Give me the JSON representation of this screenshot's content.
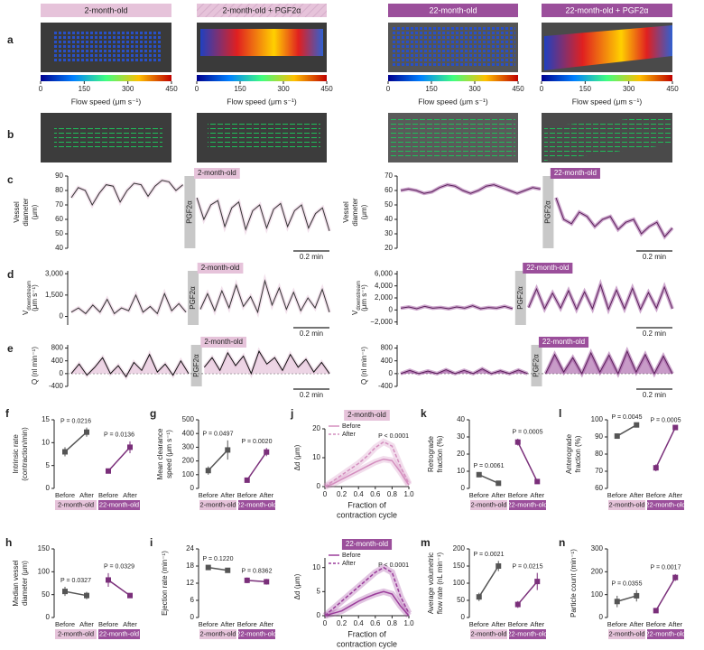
{
  "image_rows": {
    "panel_a": "a",
    "panel_b": "b",
    "headers": [
      "2-month-old",
      "2-month-old + PGF2α",
      "22-month-old",
      "22-month-old + PGF2α"
    ],
    "header_colors": [
      "#e6c3da",
      "#e6c3da",
      "#9b4f9b",
      "#9b4f9b"
    ],
    "colorbar": {
      "lim": [
        0,
        450
      ],
      "ticks": [
        0,
        150,
        300,
        450
      ],
      "label": "Flow speed (μm s⁻¹)"
    }
  },
  "chart_data": [
    {
      "type": "timeseries",
      "panel": "c",
      "y_label": [
        "Vessel",
        "diameter",
        "(μm)"
      ],
      "ylim": [
        40,
        90
      ],
      "yticks": [
        40,
        50,
        60,
        70,
        80,
        90
      ],
      "tag": "2-month-old",
      "tag_color": "#e6c3da",
      "gap_label": "PGF2α",
      "scale_label": "0.2 min",
      "color": "#333333",
      "values": [
        75,
        82,
        80,
        70,
        78,
        84,
        83,
        72,
        80,
        85,
        84,
        76,
        83,
        87,
        86,
        80,
        84,
        null,
        75,
        60,
        70,
        73,
        55,
        68,
        72,
        53,
        66,
        70,
        54,
        67,
        71,
        55,
        66,
        70,
        54,
        64,
        68,
        52
      ]
    },
    {
      "type": "timeseries",
      "y_label": [
        "Vessel",
        "diameter",
        "(μm)"
      ],
      "ylim": [
        20,
        70
      ],
      "yticks": [
        20,
        30,
        40,
        50,
        60,
        70
      ],
      "tag": "22-month-old",
      "tag_color": "#9b4f9b",
      "gap_label": "PGF2α",
      "scale_label": "0.2 min",
      "color": "#5a1f5a",
      "values": [
        60,
        61,
        60,
        58,
        59,
        62,
        64,
        63,
        60,
        58,
        60,
        63,
        64,
        62,
        60,
        58,
        60,
        62,
        61,
        null,
        55,
        40,
        37,
        45,
        42,
        35,
        40,
        42,
        33,
        38,
        40,
        30,
        35,
        38,
        28,
        34
      ]
    },
    {
      "type": "timeseries",
      "panel": "d",
      "y_label": [
        "V",
        "(μm s⁻¹)"
      ],
      "y_label_sub": "downstream",
      "ylim": [
        -600,
        3200
      ],
      "yticks": [
        0,
        {
          "value": 1500,
          "label": "1,500"
        },
        {
          "value": 3000,
          "label": "3,000"
        }
      ],
      "tag": "2-month-old",
      "tag_color": "#e6c3da",
      "gap_label": "PGF2α",
      "scale_label": "0.2 min",
      "color": "#333333",
      "values": [
        300,
        600,
        200,
        800,
        300,
        1200,
        200,
        600,
        400,
        1500,
        300,
        700,
        200,
        1600,
        400,
        900,
        300,
        null,
        500,
        1600,
        400,
        1800,
        600,
        2200,
        700,
        1400,
        300,
        2500,
        800,
        2000,
        500,
        1700,
        400,
        1300,
        600,
        1900,
        300
      ]
    },
    {
      "type": "timeseries",
      "y_label": [
        "V",
        "(μm s⁻¹)"
      ],
      "y_label_sub": "downstream",
      "ylim": [
        -2500,
        6500
      ],
      "yticks": [
        {
          "value": -2000,
          "label": "−2,000"
        },
        0,
        {
          "value": 2000,
          "label": "2,000"
        },
        {
          "value": 4000,
          "label": "4,000"
        },
        {
          "value": 6000,
          "label": "6,000"
        }
      ],
      "tag": "22-month-old",
      "tag_color": "#9b4f9b",
      "gap_label": "PGF2α",
      "scale_label": "0.2 min",
      "color": "#5a1f5a",
      "values": [
        300,
        500,
        200,
        600,
        300,
        400,
        200,
        500,
        300,
        700,
        200,
        400,
        300,
        600,
        200,
        null,
        400,
        3500,
        200,
        2800,
        300,
        3200,
        100,
        3000,
        200,
        4200,
        100,
        3300,
        200,
        3600,
        100,
        2900,
        300,
        3800,
        200
      ]
    },
    {
      "type": "timeseries",
      "panel": "e",
      "y_label": [
        "Q (nl min⁻¹)"
      ],
      "ylim": [
        -400,
        900
      ],
      "yticks": [
        -400,
        0,
        400,
        800
      ],
      "tag": "2-month-old",
      "tag_color": "#e6c3da",
      "gap_label": "PGF2α",
      "scale_label": "0.2 min",
      "color": "#111111",
      "fill": "#e6c3da",
      "values": [
        0,
        300,
        -50,
        200,
        500,
        0,
        250,
        -100,
        350,
        100,
        600,
        50,
        300,
        -50,
        400,
        0,
        null,
        200,
        500,
        100,
        650,
        250,
        550,
        0,
        700,
        300,
        500,
        100,
        600,
        200,
        450,
        50,
        350,
        0
      ]
    },
    {
      "type": "timeseries",
      "y_label": [
        "Q (nl min⁻¹)"
      ],
      "ylim": [
        -400,
        900
      ],
      "yticks": [
        -400,
        0,
        400,
        800
      ],
      "tag": "22-month-old",
      "tag_color": "#9b4f9b",
      "gap_label": "PGF2α",
      "scale_label": "0.2 min",
      "color": "#5a1f5a",
      "fill": "#b070b0",
      "values": [
        0,
        100,
        0,
        80,
        0,
        120,
        0,
        100,
        0,
        150,
        0,
        90,
        0,
        110,
        0,
        null,
        0,
        600,
        50,
        500,
        0,
        650,
        50,
        580,
        0,
        700,
        50,
        600,
        0,
        550,
        0
      ]
    },
    {
      "type": "paired",
      "panel": "f",
      "y_label": [
        "Intrinsic rate",
        "(contraction/min)"
      ],
      "ylim": [
        0,
        15
      ],
      "yticks": [
        0,
        5,
        10,
        15
      ],
      "conditions": [
        "Before",
        "After"
      ],
      "groups": [
        {
          "name": "2-month-old",
          "color": "#e6c3da",
          "values": [
            8,
            12.3
          ],
          "errors": [
            1,
            1
          ],
          "p": "P = 0.0216"
        },
        {
          "name": "22-month-old",
          "color": "#9b4f9b",
          "values": [
            3.8,
            9
          ],
          "errors": [
            0.5,
            1.3
          ],
          "p": "P = 0.0136"
        }
      ]
    },
    {
      "type": "paired",
      "panel": "g",
      "y_label": [
        "Mean clearance",
        "speed (μm s⁻¹)"
      ],
      "ylim": [
        0,
        500
      ],
      "yticks": [
        0,
        100,
        200,
        300,
        400,
        500
      ],
      "conditions": [
        "Before",
        "After"
      ],
      "groups": [
        {
          "name": "2-month-old",
          "color": "#e6c3da",
          "values": [
            130,
            280
          ],
          "errors": [
            30,
            70
          ],
          "p": "P = 0.0497"
        },
        {
          "name": "22-month-old",
          "color": "#9b4f9b",
          "values": [
            60,
            265
          ],
          "errors": [
            10,
            30
          ],
          "p": "P = 0.0020"
        }
      ]
    },
    {
      "type": "curve",
      "panel": "j",
      "tag": "2-month-old",
      "tag_color": "#e6c3da",
      "y_label": "Δd (μm)",
      "x_label": [
        "Fraction of",
        "contraction cycle"
      ],
      "p": "P < 0.0001",
      "xlim": [
        0,
        1
      ],
      "xticks": [
        0,
        0.2,
        0.4,
        0.6,
        0.8,
        {
          "value": 1,
          "label": "1.0"
        }
      ],
      "ylim": [
        0,
        20
      ],
      "yticks": [
        0,
        10,
        20
      ],
      "x": [
        0,
        0.1,
        0.2,
        0.3,
        0.4,
        0.5,
        0.6,
        0.7,
        0.8,
        0.9,
        1
      ],
      "series": [
        {
          "name": "Before",
          "color": "#d48fbf",
          "dashed": false,
          "values": [
            0,
            1,
            2.5,
            4,
            5.5,
            7,
            8.5,
            9.5,
            9,
            5,
            0.5
          ]
        },
        {
          "name": "After",
          "color": "#d48fbf",
          "dashed": true,
          "values": [
            0,
            2,
            4,
            6,
            8,
            10.5,
            13.5,
            15.5,
            14,
            7,
            1
          ]
        }
      ]
    },
    {
      "type": "paired",
      "panel": "k",
      "y_label": [
        "Retrograde",
        "fraction (%)"
      ],
      "ylim": [
        0,
        40
      ],
      "yticks": [
        0,
        10,
        20,
        30,
        40
      ],
      "conditions": [
        "Before",
        "After"
      ],
      "groups": [
        {
          "name": "2-month-old",
          "color": "#e6c3da",
          "values": [
            8,
            3
          ],
          "errors": [
            1.5,
            1
          ],
          "p": "P = 0.0061"
        },
        {
          "name": "22-month-old",
          "color": "#9b4f9b",
          "values": [
            27,
            4
          ],
          "errors": [
            2,
            0.8
          ],
          "p": "P = 0.0005"
        }
      ]
    },
    {
      "type": "paired",
      "panel": "l",
      "y_label": [
        "Anterograde",
        "fraction (%)"
      ],
      "ylim": [
        60,
        100
      ],
      "yticks": [
        60,
        70,
        80,
        90,
        100
      ],
      "conditions": [
        "Before",
        "After"
      ],
      "groups": [
        {
          "name": "2-month-old",
          "color": "#e6c3da",
          "values": [
            90.5,
            97
          ],
          "errors": [
            1.5,
            0.8
          ],
          "p": "P = 0.0045"
        },
        {
          "name": "22-month-old",
          "color": "#9b4f9b",
          "values": [
            72,
            95.5
          ],
          "errors": [
            2,
            0.6
          ],
          "p": "P = 0.0005"
        }
      ]
    },
    {
      "type": "paired",
      "panel": "h",
      "y_label": [
        "Median vessel",
        "diameter (μm)"
      ],
      "ylim": [
        0,
        150
      ],
      "yticks": [
        0,
        50,
        100,
        150
      ],
      "conditions": [
        "Before",
        "After"
      ],
      "groups": [
        {
          "name": "2-month-old",
          "color": "#e6c3da",
          "values": [
            57,
            48
          ],
          "errors": [
            10,
            8
          ],
          "p": "P = 0.0327"
        },
        {
          "name": "22-month-old",
          "color": "#9b4f9b",
          "values": [
            82,
            48
          ],
          "errors": [
            15,
            5
          ],
          "p": "P = 0.0329"
        }
      ]
    },
    {
      "type": "paired",
      "panel": "i",
      "y_label": [
        "Ejection rate (min⁻¹)"
      ],
      "ylim": [
        0,
        24
      ],
      "yticks": [
        0,
        6,
        12,
        18,
        24
      ],
      "conditions": [
        "Before",
        "After"
      ],
      "groups": [
        {
          "name": "2-month-old",
          "color": "#e6c3da",
          "values": [
            17.5,
            16.5
          ],
          "errors": [
            0.8,
            0.8
          ],
          "p": "P = 0.1220"
        },
        {
          "name": "22-month-old",
          "color": "#9b4f9b",
          "values": [
            13,
            12.5
          ],
          "errors": [
            1,
            1
          ],
          "p": "P = 0.8362"
        }
      ]
    },
    {
      "type": "curve",
      "tag": "22-month-old",
      "tag_color": "#9b4f9b",
      "y_label": "Δd (μm)",
      "x_label": [
        "Fraction of",
        "contraction cycle"
      ],
      "p": "P < 0.0001",
      "xlim": [
        0,
        1
      ],
      "xticks": [
        0,
        0.2,
        0.4,
        0.6,
        0.8,
        {
          "value": 1,
          "label": "1.0"
        }
      ],
      "ylim": [
        0,
        12
      ],
      "yticks": [
        0,
        5,
        10
      ],
      "x": [
        0,
        0.1,
        0.2,
        0.3,
        0.4,
        0.5,
        0.6,
        0.7,
        0.8,
        0.9,
        1
      ],
      "series": [
        {
          "name": "Before",
          "color": "#9b3d9b",
          "dashed": false,
          "values": [
            0,
            0.5,
            1,
            2,
            3,
            3.8,
            4.5,
            5,
            4.5,
            2,
            0
          ]
        },
        {
          "name": "After",
          "color": "#9b3d9b",
          "dashed": true,
          "values": [
            0,
            1.5,
            3,
            4.5,
            6,
            7.5,
            9,
            10,
            9,
            4,
            0.5
          ]
        }
      ]
    },
    {
      "type": "paired",
      "panel": "m",
      "y_label": [
        "Average volumetric",
        "flow rate (nL min⁻¹)"
      ],
      "ylim": [
        0,
        200
      ],
      "yticks": [
        0,
        50,
        100,
        150,
        200
      ],
      "conditions": [
        "Before",
        "After"
      ],
      "groups": [
        {
          "name": "2-month-old",
          "color": "#e6c3da",
          "values": [
            60,
            150
          ],
          "errors": [
            12,
            15
          ],
          "p": "P = 0.0021"
        },
        {
          "name": "22-month-old",
          "color": "#9b4f9b",
          "values": [
            38,
            105
          ],
          "errors": [
            10,
            25
          ],
          "p": "P = 0.0215"
        }
      ]
    },
    {
      "type": "paired",
      "panel": "n",
      "y_label": [
        "Particle count (min⁻¹)"
      ],
      "ylim": [
        0,
        300
      ],
      "yticks": [
        0,
        100,
        200,
        300
      ],
      "conditions": [
        "Before",
        "After"
      ],
      "groups": [
        {
          "name": "2-month-old",
          "color": "#e6c3da",
          "values": [
            70,
            95
          ],
          "errors": [
            25,
            25
          ],
          "p": "P = 0.0355"
        },
        {
          "name": "22-month-old",
          "color": "#9b4f9b",
          "values": [
            30,
            175
          ],
          "errors": [
            5,
            15
          ],
          "p": "P = 0.0017"
        }
      ]
    }
  ]
}
